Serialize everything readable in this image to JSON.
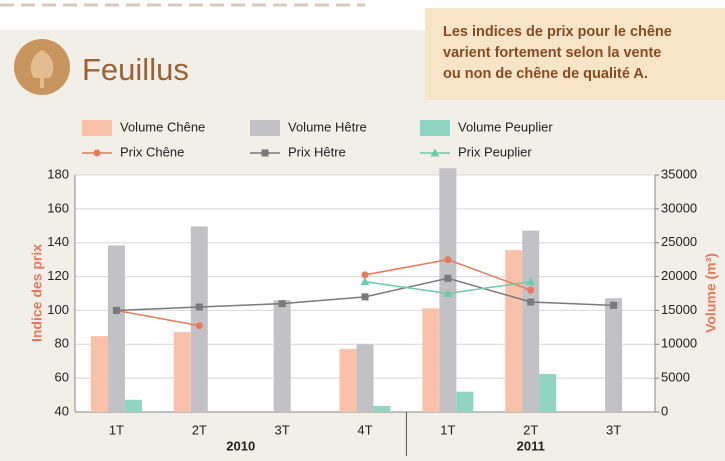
{
  "title": "Feuillus",
  "callout": [
    "Les indices de prix pour le chêne",
    "varient fortement selon la vente",
    "ou non de chêne de qualité A."
  ],
  "chart_data": {
    "type": "combo",
    "category_groups": [
      {
        "name": "2010",
        "categories": [
          "1T",
          "2T",
          "3T",
          "4T"
        ]
      },
      {
        "name": "2011",
        "categories": [
          "1T",
          "2T",
          "3T"
        ]
      }
    ],
    "ylabel": "Indice des prix",
    "y2label": "Volume (m³)",
    "ylim": [
      40,
      180
    ],
    "yticks": [
      40,
      60,
      80,
      100,
      120,
      140,
      160,
      180
    ],
    "y2lim": [
      0,
      35000
    ],
    "y2ticks": [
      0,
      5000,
      10000,
      15000,
      20000,
      25000,
      30000,
      35000
    ],
    "grid": true,
    "series": [
      {
        "name": "Volume Chêne",
        "type": "bar",
        "axis": "y2",
        "color": "#f9c1a9",
        "values": [
          11200,
          11800,
          null,
          9300,
          15300,
          23900,
          null
        ]
      },
      {
        "name": "Volume Hêtre",
        "type": "bar",
        "axis": "y2",
        "color": "#c2c1c6",
        "values": [
          24600,
          27400,
          16500,
          10000,
          36000,
          26800,
          16800
        ]
      },
      {
        "name": "Volume Peuplier",
        "type": "bar",
        "axis": "y2",
        "color": "#8fd5c1",
        "values": [
          1800,
          null,
          null,
          900,
          3000,
          5600,
          null
        ]
      },
      {
        "name": "Prix Chêne",
        "type": "line",
        "axis": "y",
        "color": "#e8795a",
        "marker": "circle",
        "values": [
          100,
          91,
          null,
          121,
          130,
          112,
          null
        ]
      },
      {
        "name": "Prix Hêtre",
        "type": "line",
        "axis": "y",
        "color": "#7a7a7a",
        "marker": "square",
        "values": [
          100,
          102,
          104,
          108,
          119,
          105,
          103
        ]
      },
      {
        "name": "Prix Peuplier",
        "type": "line",
        "axis": "y",
        "color": "#6fcaa8",
        "marker": "triangle",
        "values": [
          null,
          null,
          null,
          117,
          110,
          117,
          null
        ]
      }
    ]
  }
}
